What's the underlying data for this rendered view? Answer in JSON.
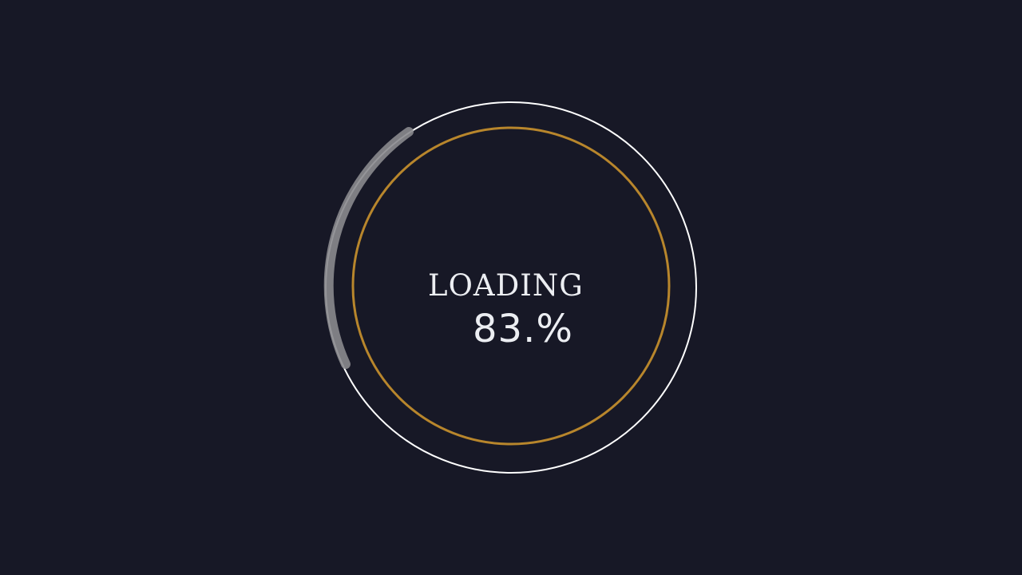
{
  "loader": {
    "label": "LOADING",
    "percent_text": "83.%",
    "progress": 0.83
  },
  "colors": {
    "background": "#171826",
    "outer_ring": "#ffffff",
    "inner_ring": "#b8862c",
    "spinner_arc": "#8a8a8e",
    "text": "#eceef2"
  }
}
